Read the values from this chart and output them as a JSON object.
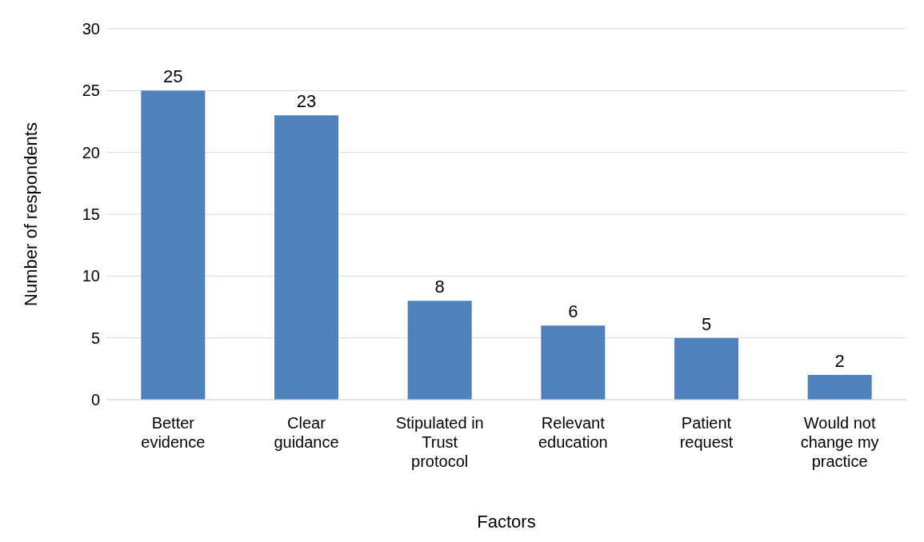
{
  "chart_data": {
    "type": "bar",
    "xlabel": "Factors",
    "ylabel": "Number of respondents",
    "categories": [
      "Better evidence",
      "Clear guidance",
      "Stipulated in Trust protocol",
      "Relevant education",
      "Patient request",
      "Would not change my practice"
    ],
    "values": [
      25,
      23,
      8,
      6,
      5,
      2
    ],
    "color": "#4f81bd",
    "ylim": [
      0,
      30
    ],
    "yticks": [
      0,
      5,
      10,
      15,
      20,
      25,
      30
    ],
    "grid": "y",
    "data_labels": true,
    "legend": false
  }
}
